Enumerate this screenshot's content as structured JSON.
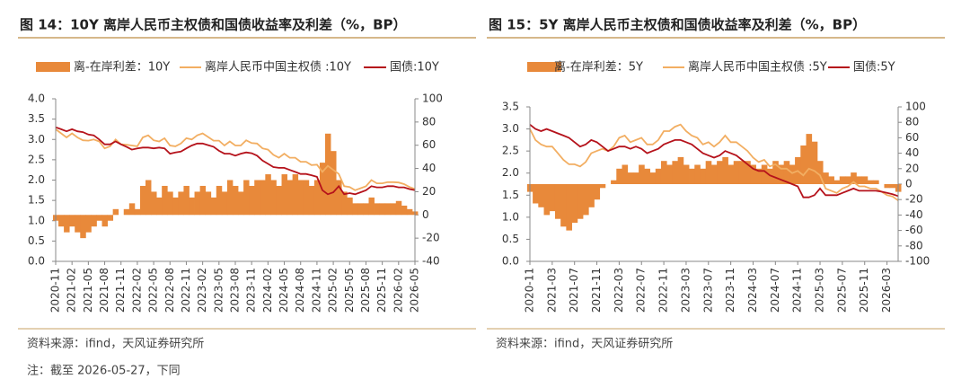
{
  "chart_data": [
    {
      "type": "bar-line",
      "title": "图 14：10Y 离岸人民币主权债和国债收益率及利差（%，BP）",
      "x": [
        "2020-11",
        "2020-12",
        "2021-01",
        "2021-02",
        "2021-03",
        "2021-04",
        "2021-05",
        "2021-06",
        "2021-07",
        "2021-08",
        "2021-09",
        "2021-10",
        "2021-11",
        "2021-12",
        "2022-01",
        "2022-02",
        "2022-03",
        "2022-04",
        "2022-05",
        "2022-06",
        "2022-07",
        "2022-08",
        "2022-09",
        "2022-10",
        "2022-11",
        "2022-12",
        "2023-01",
        "2023-02",
        "2023-03",
        "2023-04",
        "2023-05",
        "2023-06",
        "2023-07",
        "2023-08",
        "2023-09",
        "2023-10",
        "2023-11",
        "2023-12",
        "2024-01",
        "2024-02",
        "2024-03",
        "2024-04",
        "2024-05",
        "2024-06",
        "2024-07",
        "2024-08",
        "2024-09",
        "2024-10",
        "2024-11",
        "2024-12",
        "2025-01",
        "2025-02",
        "2025-03",
        "2025-04",
        "2025-05",
        "2025-06",
        "2025-07",
        "2025-08",
        "2025-09",
        "2025-10",
        "2025-11",
        "2025-12",
        "2026-01",
        "2026-02",
        "2026-03",
        "2026-04",
        "2026-05"
      ],
      "xticks": [
        "2020-11",
        "2021-02",
        "2021-05",
        "2021-08",
        "2021-11",
        "2022-02",
        "2022-05",
        "2022-08",
        "2022-11",
        "2023-02",
        "2023-05",
        "2023-08",
        "2023-11",
        "2024-02",
        "2024-05",
        "2024-08",
        "2024-11",
        "2025-02",
        "2025-05",
        "2025-08",
        "2025-11",
        "2026-02",
        "2026-05"
      ],
      "series": [
        {
          "name": "离-在岸利差：10Y",
          "color": "#e8893a",
          "axis": "y2",
          "values": [
            -5,
            -10,
            -15,
            -10,
            -15,
            -20,
            -15,
            -10,
            -5,
            -10,
            -5,
            5,
            0,
            5,
            10,
            5,
            25,
            30,
            20,
            15,
            25,
            20,
            15,
            20,
            25,
            15,
            20,
            25,
            20,
            15,
            25,
            20,
            30,
            25,
            20,
            30,
            25,
            30,
            30,
            35,
            30,
            25,
            35,
            30,
            35,
            30,
            30,
            25,
            30,
            45,
            70,
            55,
            30,
            20,
            15,
            10,
            10,
            10,
            15,
            10,
            10,
            10,
            10,
            12,
            8,
            5,
            3
          ]
        },
        {
          "name": "离岸人民币中国主权债 :10Y",
          "color": "#f2ae62",
          "values": [
            3.25,
            3.15,
            3.05,
            3.15,
            3.05,
            2.98,
            2.97,
            3.0,
            2.95,
            2.78,
            2.83,
            3.0,
            2.88,
            2.87,
            2.85,
            2.83,
            3.05,
            3.1,
            2.98,
            2.95,
            3.03,
            2.85,
            2.83,
            2.9,
            3.03,
            3.0,
            3.1,
            3.15,
            3.06,
            2.97,
            2.97,
            2.85,
            2.95,
            2.85,
            2.85,
            2.98,
            2.91,
            2.9,
            2.78,
            2.75,
            2.62,
            2.55,
            2.65,
            2.55,
            2.55,
            2.45,
            2.45,
            2.37,
            2.38,
            2.2,
            2.35,
            2.25,
            2.15,
            1.85,
            1.83,
            1.75,
            1.8,
            1.85,
            2.0,
            1.92,
            1.92,
            1.95,
            1.95,
            1.94,
            1.9,
            1.83,
            1.78
          ]
        },
        {
          "name": "国债:10Y",
          "color": "#b5121b",
          "values": [
            3.3,
            3.25,
            3.2,
            3.25,
            3.2,
            3.18,
            3.12,
            3.1,
            3.0,
            2.88,
            2.88,
            2.95,
            2.88,
            2.82,
            2.75,
            2.78,
            2.8,
            2.8,
            2.78,
            2.8,
            2.78,
            2.65,
            2.68,
            2.7,
            2.78,
            2.85,
            2.9,
            2.9,
            2.86,
            2.82,
            2.72,
            2.65,
            2.65,
            2.6,
            2.65,
            2.68,
            2.66,
            2.6,
            2.48,
            2.4,
            2.32,
            2.3,
            2.3,
            2.25,
            2.2,
            2.15,
            2.15,
            2.12,
            2.08,
            1.75,
            1.65,
            1.7,
            1.85,
            1.65,
            1.68,
            1.65,
            1.7,
            1.75,
            1.85,
            1.82,
            1.82,
            1.85,
            1.85,
            1.82,
            1.82,
            1.78,
            1.75
          ]
        }
      ],
      "ylim": [
        0,
        4
      ],
      "yticks": [
        {
          "value": 0,
          "label": "0.0"
        },
        0.5,
        {
          "value": 1,
          "label": "1.0"
        },
        1.5,
        {
          "value": 2,
          "label": "2.0"
        },
        2.5,
        {
          "value": 3,
          "label": "3.0"
        },
        3.5,
        {
          "value": 4,
          "label": "4.0"
        }
      ],
      "y2lim": [
        -40,
        100
      ],
      "y2ticks": [
        -40,
        -20,
        0,
        20,
        40,
        60,
        80,
        100
      ],
      "source": "资料来源：ifind，天风证券研究所"
    },
    {
      "type": "bar-line",
      "title": "图 15：5Y 离岸人民币主权债和国债收益率及利差（%，BP）",
      "x": [
        "2020-11",
        "2020-12",
        "2021-01",
        "2021-02",
        "2021-03",
        "2021-04",
        "2021-05",
        "2021-06",
        "2021-07",
        "2021-08",
        "2021-09",
        "2021-10",
        "2021-11",
        "2021-12",
        "2022-01",
        "2022-02",
        "2022-03",
        "2022-04",
        "2022-05",
        "2022-06",
        "2022-07",
        "2022-08",
        "2022-09",
        "2022-10",
        "2022-11",
        "2022-12",
        "2023-01",
        "2023-02",
        "2023-03",
        "2023-04",
        "2023-05",
        "2023-06",
        "2023-07",
        "2023-08",
        "2023-09",
        "2023-10",
        "2023-11",
        "2023-12",
        "2024-01",
        "2024-02",
        "2024-03",
        "2024-04",
        "2024-05",
        "2024-06",
        "2024-07",
        "2024-08",
        "2024-09",
        "2024-10",
        "2024-11",
        "2024-12",
        "2025-01",
        "2025-02",
        "2025-03",
        "2025-04",
        "2025-05",
        "2025-06",
        "2025-07",
        "2025-08",
        "2025-09",
        "2025-10",
        "2025-11",
        "2025-12",
        "2026-01",
        "2026-02",
        "2026-03",
        "2026-04",
        "2026-05"
      ],
      "xticks": [
        "2020-11",
        "2021-03",
        "2021-07",
        "2021-11",
        "2022-03",
        "2022-07",
        "2022-11",
        "2023-03",
        "2023-07",
        "2023-11",
        "2024-03",
        "2024-07",
        "2024-11",
        "2025-03",
        "2025-07",
        "2025-11",
        "2026-03"
      ],
      "series": [
        {
          "name": "离-在岸利差：5Y",
          "color": "#e8893a",
          "axis": "y2",
          "values": [
            -10,
            -25,
            -30,
            -40,
            -35,
            -45,
            -55,
            -60,
            -50,
            -45,
            -40,
            -30,
            -20,
            -5,
            0,
            5,
            20,
            25,
            15,
            15,
            25,
            20,
            15,
            20,
            30,
            25,
            30,
            35,
            25,
            20,
            25,
            20,
            30,
            25,
            30,
            35,
            25,
            30,
            30,
            30,
            25,
            20,
            25,
            20,
            30,
            25,
            30,
            25,
            35,
            50,
            65,
            55,
            30,
            15,
            10,
            5,
            10,
            10,
            15,
            10,
            10,
            5,
            5,
            0,
            -5,
            -5,
            -10
          ]
        },
        {
          "name": "离岸人民币中国主权债 :5Y",
          "color": "#f2ae62",
          "values": [
            3.0,
            2.75,
            2.65,
            2.6,
            2.6,
            2.45,
            2.3,
            2.2,
            2.2,
            2.15,
            2.25,
            2.45,
            2.5,
            2.55,
            2.5,
            2.6,
            2.8,
            2.85,
            2.7,
            2.75,
            2.8,
            2.65,
            2.65,
            2.75,
            2.95,
            2.95,
            3.05,
            3.1,
            2.95,
            2.85,
            2.8,
            2.65,
            2.7,
            2.6,
            2.7,
            2.85,
            2.7,
            2.7,
            2.6,
            2.5,
            2.35,
            2.25,
            2.3,
            2.15,
            2.2,
            2.1,
            2.1,
            2.0,
            2.05,
            1.95,
            2.1,
            2.05,
            1.95,
            1.65,
            1.6,
            1.55,
            1.65,
            1.7,
            1.8,
            1.7,
            1.7,
            1.65,
            1.65,
            1.58,
            1.5,
            1.47,
            1.38
          ]
        },
        {
          "name": "国债:5Y",
          "color": "#b5121b",
          "values": [
            3.1,
            3.0,
            2.95,
            3.0,
            2.95,
            2.9,
            2.85,
            2.8,
            2.7,
            2.6,
            2.65,
            2.75,
            2.7,
            2.6,
            2.5,
            2.55,
            2.6,
            2.6,
            2.55,
            2.6,
            2.55,
            2.45,
            2.5,
            2.55,
            2.65,
            2.7,
            2.75,
            2.75,
            2.7,
            2.65,
            2.55,
            2.45,
            2.4,
            2.35,
            2.4,
            2.5,
            2.45,
            2.4,
            2.3,
            2.2,
            2.1,
            2.05,
            2.05,
            1.95,
            1.9,
            1.85,
            1.8,
            1.75,
            1.7,
            1.45,
            1.45,
            1.5,
            1.65,
            1.5,
            1.5,
            1.5,
            1.55,
            1.6,
            1.65,
            1.6,
            1.6,
            1.6,
            1.6,
            1.58,
            1.55,
            1.52,
            1.48
          ]
        }
      ],
      "ylim": [
        0,
        3.5
      ],
      "yticks": [
        {
          "value": 0,
          "label": "0.0"
        },
        0.5,
        {
          "value": 1,
          "label": "1.0"
        },
        1.5,
        {
          "value": 2,
          "label": "2.0"
        },
        2.5,
        {
          "value": 3,
          "label": "3.0"
        },
        3.5
      ],
      "y2lim": [
        -100,
        100
      ],
      "y2ticks": [
        -100,
        -80,
        -60,
        -40,
        -20,
        0,
        20,
        40,
        60,
        80,
        100
      ],
      "source": "资料来源：ifind，天风证券研究所"
    }
  ],
  "footnote": "注：截至 2026-05-27，下同"
}
